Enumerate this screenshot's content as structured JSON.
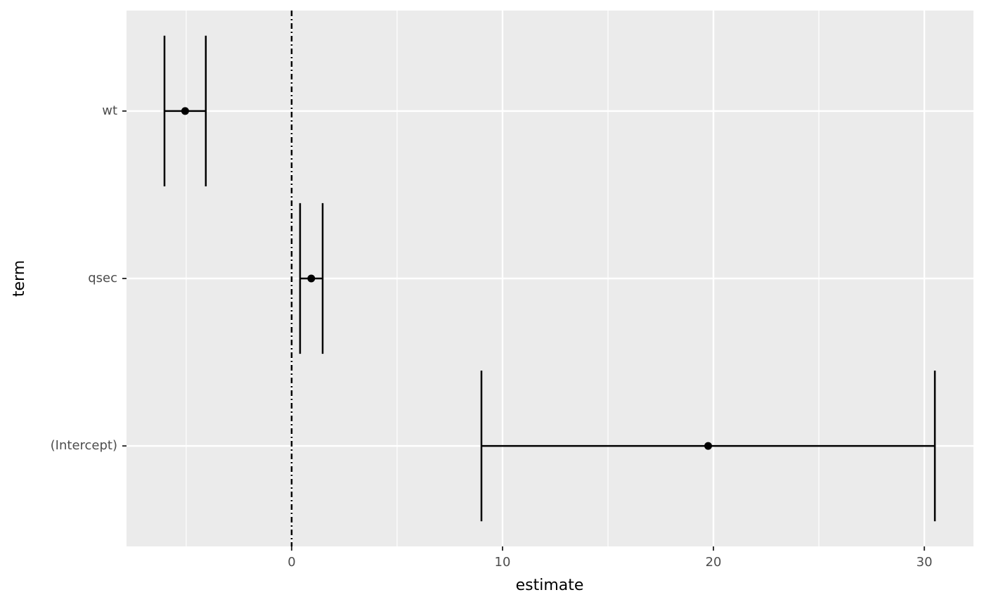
{
  "chart_data": {
    "type": "errorbar",
    "x_label": "estimate",
    "y_label": "term",
    "categories": [
      "(Intercept)",
      "qsec",
      "wt"
    ],
    "values": [
      19.75,
      0.93,
      -5.05
    ],
    "conf_low": [
      9.0,
      0.4,
      -6.03
    ],
    "conf_high": [
      30.5,
      1.47,
      -4.07
    ],
    "color": "#000000",
    "xlim": [
      -7.83,
      32.33
    ],
    "xticks": [
      0,
      10,
      20,
      30
    ],
    "x_minor_grid": [
      -5,
      5,
      15,
      25
    ],
    "reference_line": 0,
    "grid": true
  }
}
